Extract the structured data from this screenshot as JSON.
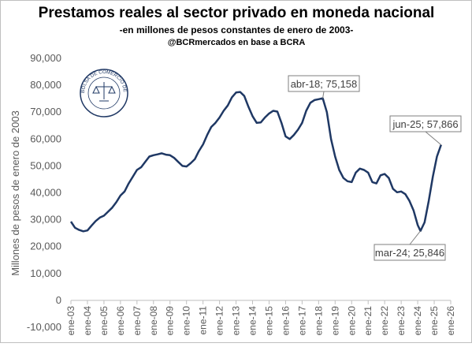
{
  "chart_data": {
    "type": "line",
    "title": "Prestamos reales al sector privado en moneda nacional",
    "subtitle": "-en millones de pesos constantes de enero de 2003-",
    "source": "@BCRmercados en base a BCRA",
    "logo_text": "BOLSA DE COMERCIO DE ROSARIO",
    "y_label": "Millones de pesos de enero de 2003",
    "ylim": [
      -10000,
      90000
    ],
    "yticks": [
      {
        "value": -10000,
        "label": "-10,000"
      },
      0,
      {
        "value": 10000,
        "label": "10,000"
      },
      {
        "value": 20000,
        "label": "20,000"
      },
      {
        "value": 30000,
        "label": "30,000"
      },
      {
        "value": 40000,
        "label": "40,000"
      },
      {
        "value": 50000,
        "label": "50,000"
      },
      {
        "value": 60000,
        "label": "60,000"
      },
      {
        "value": 70000,
        "label": "70,000"
      },
      {
        "value": 80000,
        "label": "80,000"
      },
      {
        "value": 90000,
        "label": "90,000"
      }
    ],
    "xlim": [
      "2003-01",
      "2026-01"
    ],
    "xticks": [
      {
        "value": "2003-01",
        "label": "ene-03"
      },
      {
        "value": "2004-01",
        "label": "ene-04"
      },
      {
        "value": "2005-01",
        "label": "ene-05"
      },
      {
        "value": "2006-01",
        "label": "ene-06"
      },
      {
        "value": "2007-01",
        "label": "ene-07"
      },
      {
        "value": "2008-01",
        "label": "ene-08"
      },
      {
        "value": "2009-01",
        "label": "ene-09"
      },
      {
        "value": "2010-01",
        "label": "ene-10"
      },
      {
        "value": "2011-01",
        "label": "ene-11"
      },
      {
        "value": "2012-01",
        "label": "ene-12"
      },
      {
        "value": "2013-01",
        "label": "ene-13"
      },
      {
        "value": "2014-01",
        "label": "ene-14"
      },
      {
        "value": "2015-01",
        "label": "ene-15"
      },
      {
        "value": "2016-01",
        "label": "ene-16"
      },
      {
        "value": "2017-01",
        "label": "ene-17"
      },
      {
        "value": "2018-01",
        "label": "ene-18"
      },
      {
        "value": "2019-01",
        "label": "ene-19"
      },
      {
        "value": "2020-01",
        "label": "ene-20"
      },
      {
        "value": "2021-01",
        "label": "ene-21"
      },
      {
        "value": "2022-01",
        "label": "ene-22"
      },
      {
        "value": "2023-01",
        "label": "ene-23"
      },
      {
        "value": "2024-01",
        "label": "ene-24"
      },
      {
        "value": "2025-01",
        "label": "ene-25"
      },
      {
        "value": "2026-01",
        "label": "ene-26"
      }
    ],
    "x": [
      "2003-01",
      "2003-04",
      "2003-07",
      "2003-10",
      "2004-01",
      "2004-04",
      "2004-07",
      "2004-10",
      "2005-01",
      "2005-04",
      "2005-07",
      "2005-10",
      "2006-01",
      "2006-04",
      "2006-07",
      "2006-10",
      "2007-01",
      "2007-04",
      "2007-07",
      "2007-10",
      "2008-01",
      "2008-04",
      "2008-07",
      "2008-10",
      "2009-01",
      "2009-04",
      "2009-07",
      "2009-10",
      "2010-01",
      "2010-04",
      "2010-07",
      "2010-10",
      "2011-01",
      "2011-04",
      "2011-07",
      "2011-10",
      "2012-01",
      "2012-04",
      "2012-07",
      "2012-10",
      "2013-01",
      "2013-04",
      "2013-07",
      "2013-10",
      "2014-01",
      "2014-04",
      "2014-07",
      "2014-10",
      "2015-01",
      "2015-04",
      "2015-07",
      "2015-10",
      "2016-01",
      "2016-04",
      "2016-07",
      "2016-10",
      "2017-01",
      "2017-04",
      "2017-07",
      "2017-10",
      "2018-01",
      "2018-04",
      "2018-07",
      "2018-10",
      "2019-01",
      "2019-04",
      "2019-07",
      "2019-10",
      "2020-01",
      "2020-04",
      "2020-07",
      "2020-10",
      "2021-01",
      "2021-04",
      "2021-07",
      "2021-10",
      "2022-01",
      "2022-04",
      "2022-07",
      "2022-10",
      "2023-01",
      "2023-04",
      "2023-07",
      "2023-10",
      "2024-01",
      "2024-03",
      "2024-06",
      "2024-09",
      "2024-12",
      "2025-03",
      "2025-06"
    ],
    "series": [
      {
        "color": "#1f3864",
        "values": [
          29300,
          27000,
          26200,
          25700,
          26000,
          27800,
          29500,
          30800,
          31500,
          33000,
          34500,
          36500,
          39000,
          40500,
          43500,
          46000,
          48500,
          49500,
          51500,
          53500,
          54000,
          54300,
          54700,
          54200,
          54000,
          53000,
          51500,
          50000,
          49800,
          51000,
          52500,
          55500,
          58000,
          61500,
          64500,
          66000,
          68000,
          70500,
          72500,
          75500,
          77300,
          77500,
          76000,
          72000,
          68500,
          66000,
          66200,
          68000,
          69500,
          70500,
          70200,
          66000,
          61000,
          60000,
          61500,
          63500,
          66000,
          70500,
          73500,
          74500,
          74800,
          75158,
          70000,
          60000,
          53500,
          48500,
          45500,
          44300,
          44000,
          47500,
          49000,
          48500,
          47500,
          44000,
          43500,
          46500,
          47000,
          45500,
          41500,
          40200,
          40500,
          39500,
          37000,
          33500,
          28000,
          25846,
          29000,
          37000,
          46000,
          53500,
          57866
        ]
      }
    ],
    "annotations": [
      {
        "label": "abr-18; 75,158",
        "x": "2018-04",
        "value": 75158
      },
      {
        "label": "jun-25; 57,866",
        "x": "2025-06",
        "value": 57866
      },
      {
        "label": "mar-24; 25,846",
        "x": "2024-03",
        "value": 25846
      }
    ]
  }
}
